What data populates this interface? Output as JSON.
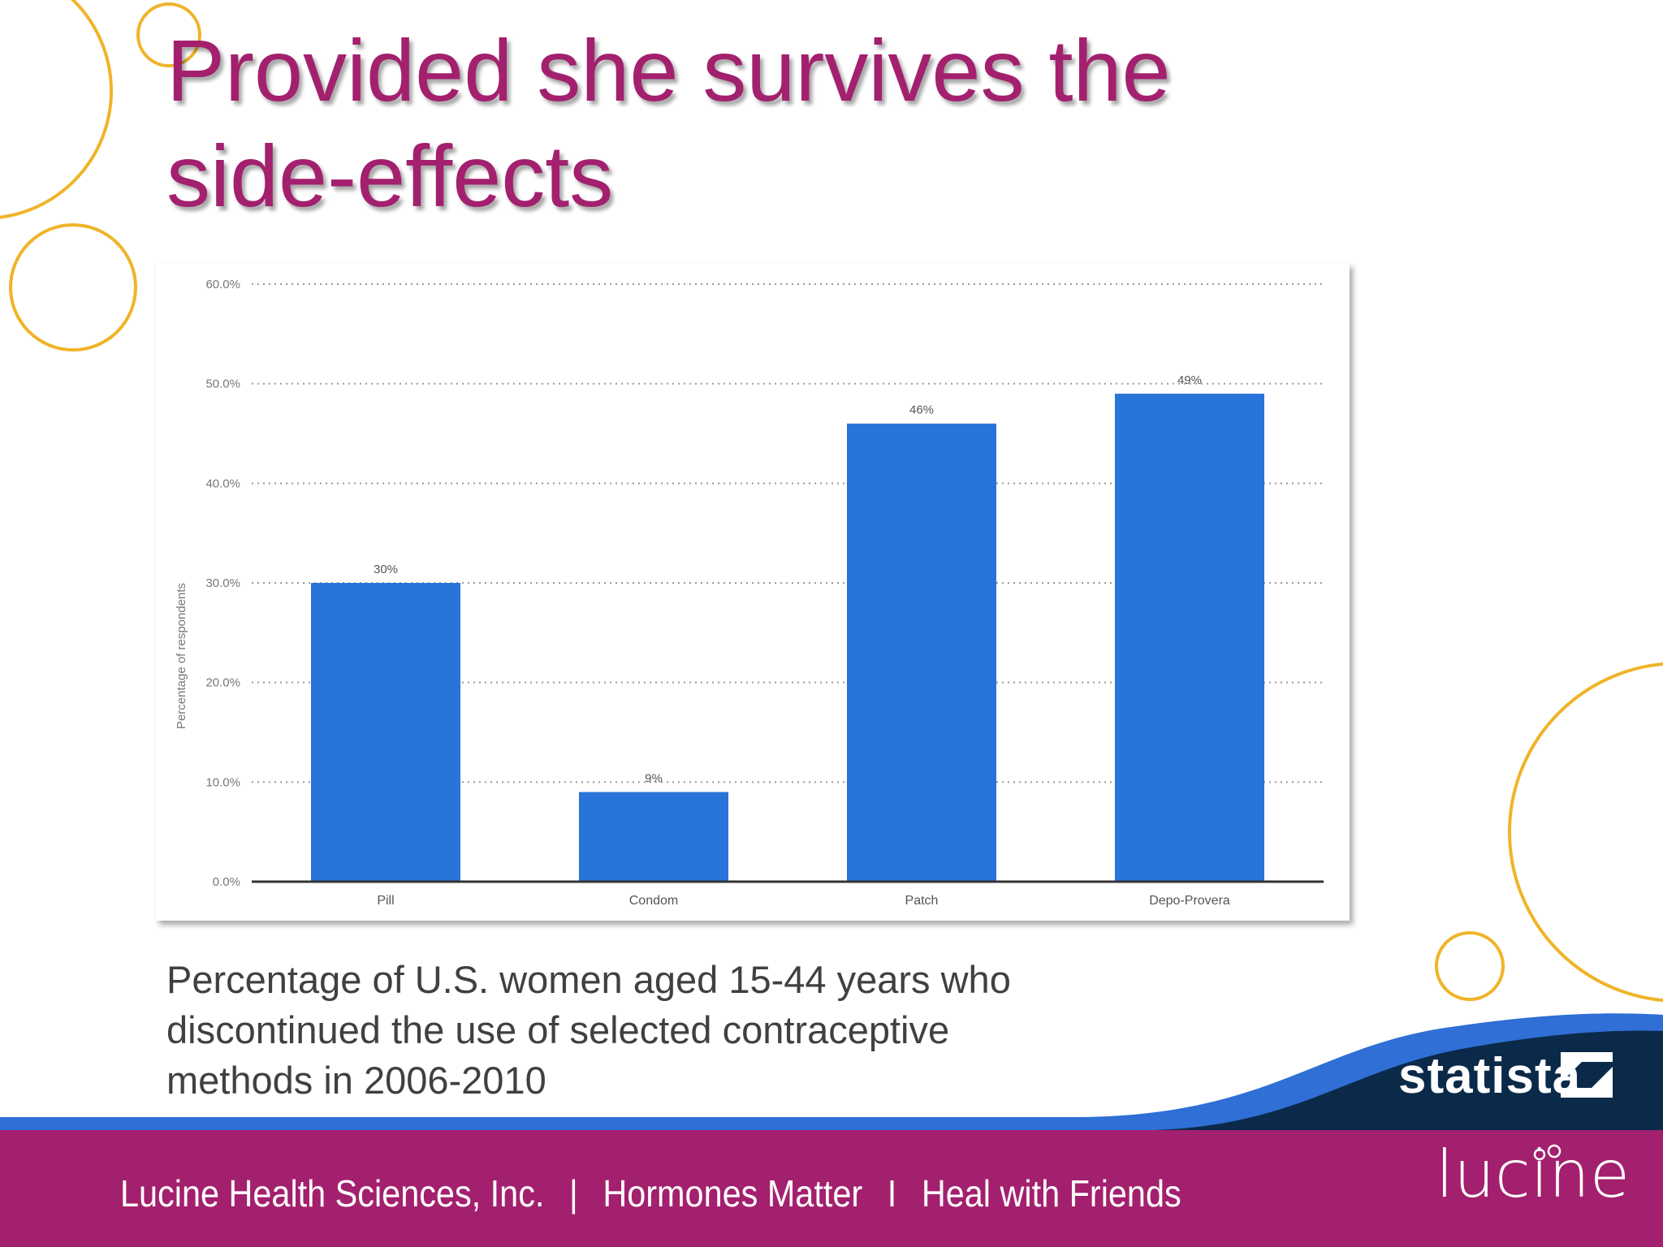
{
  "slide": {
    "title_line1": "Provided she survives the",
    "title_line2": "side-effects",
    "caption_line1": "Percentage of U.S. women aged 15-44 years who",
    "caption_line2": "discontinued the use of selected contraceptive",
    "caption_line3": "methods in 2006-2010"
  },
  "footer": {
    "company": "Lucine Health Sciences, Inc.",
    "sep1": "|",
    "item2": "Hormones Matter",
    "sep2": "I",
    "item3": "Heal with Friends"
  },
  "brands": {
    "statista": "statista",
    "lucine": "lucine"
  },
  "colors": {
    "accent": "#a3206e",
    "bar": "#2874d8",
    "deco_circle": "#f0b429",
    "wave_dark": "#0b2a4a",
    "wave_blue": "#2f6fd6"
  },
  "chart_data": {
    "type": "bar",
    "categories": [
      "Pill",
      "Condom",
      "Patch",
      "Depo-Provera"
    ],
    "values": [
      30,
      9,
      46,
      49
    ],
    "data_labels": [
      "30%",
      "9%",
      "46%",
      "49%"
    ],
    "ylabel": "Percentage of respondents",
    "ylim": [
      0,
      60
    ],
    "yticks": [
      0,
      10,
      20,
      30,
      40,
      50,
      60
    ],
    "ytick_labels": [
      "0.0%",
      "10.0%",
      "20.0%",
      "30.0%",
      "40.0%",
      "50.0%",
      "60.0%"
    ],
    "grid": true,
    "legend": "none"
  }
}
